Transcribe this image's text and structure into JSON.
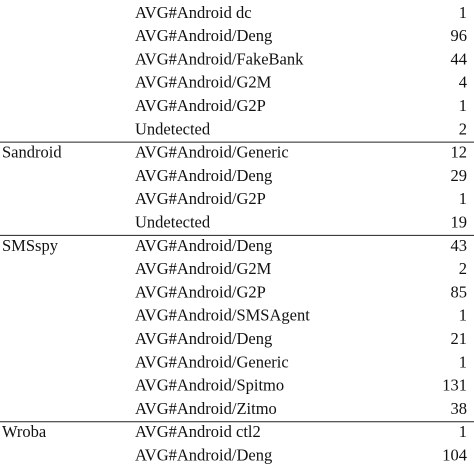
{
  "table": {
    "groups": [
      {
        "rows": [
          [
            "AVG#Android dc",
            1
          ],
          [
            "AVG#Android/Deng",
            96
          ],
          [
            "AVG#Android/FakeBank",
            44
          ],
          [
            "AVG#Android/G2M",
            4
          ],
          [
            "AVG#Android/G2P",
            1
          ],
          [
            "Undetected",
            2
          ]
        ]
      },
      {
        "family": "Sandroid",
        "rows": [
          [
            "AVG#Android/Generic",
            12
          ],
          [
            "AVG#Android/Deng",
            29
          ],
          [
            "AVG#Android/G2P",
            1
          ],
          [
            "Undetected",
            19
          ]
        ]
      },
      {
        "family": "SMSspy",
        "rows": [
          [
            "AVG#Android/Deng",
            43
          ],
          [
            "AVG#Android/G2M",
            2
          ],
          [
            "AVG#Android/G2P",
            85
          ],
          [
            "AVG#Android/SMSAgent",
            1
          ],
          [
            "AVG#Android/Deng",
            21
          ],
          [
            "AVG#Android/Generic",
            1
          ],
          [
            "AVG#Android/Spitmo",
            131
          ],
          [
            "AVG#Android/Zitmo",
            38
          ]
        ]
      },
      {
        "family": "Wroba",
        "rows": [
          [
            "AVG#Android ctl2",
            1
          ],
          [
            "AVG#Android/Deng",
            104
          ]
        ]
      }
    ]
  }
}
